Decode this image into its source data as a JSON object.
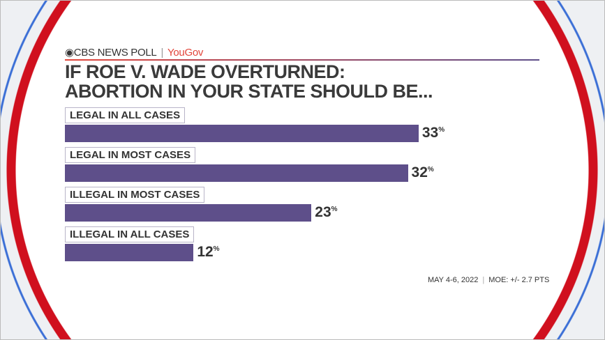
{
  "brand": {
    "network": "CBS NEWS POLL",
    "partner": "YouGov"
  },
  "colors": {
    "bar": "#5e4f8a",
    "ring": "#d0101e",
    "accent": "#e2453a"
  },
  "chart_data": {
    "type": "bar",
    "title": "IF ROE V. WADE OVERTURNED: ABORTION IN YOUR STATE SHOULD BE...",
    "title_lines": [
      "IF ROE V. WADE OVERTURNED:",
      "ABORTION IN YOUR STATE SHOULD BE..."
    ],
    "categories": [
      "LEGAL IN ALL CASES",
      "LEGAL IN  MOST CASES",
      "ILLEGAL IN MOST CASES",
      "ILLEGAL IN ALL CASES"
    ],
    "values": [
      33,
      32,
      23,
      12
    ],
    "value_labels": [
      "33",
      "32",
      "23",
      "12"
    ],
    "unit": "%",
    "orientation": "horizontal",
    "xlim": [
      0,
      33
    ]
  },
  "footer": {
    "date": "MAY 4-6, 2022",
    "moe": "MOE: +/- 2.7 PTS"
  }
}
